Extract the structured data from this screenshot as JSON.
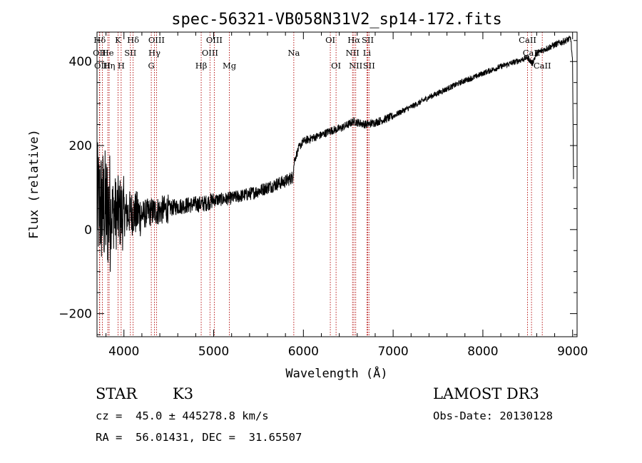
{
  "chart_data": {
    "type": "line",
    "title": "spec-56321-VB058N31V2_sp14-172.fits",
    "xlabel": "Wavelength (Å)",
    "ylabel": "Flux (relative)",
    "xlim": [
      3700,
      9050
    ],
    "ylim": [
      -255,
      470
    ],
    "xticks": [
      4000,
      5000,
      6000,
      7000,
      8000,
      9000
    ],
    "yticks": [
      -200,
      0,
      200,
      400
    ],
    "grid": false,
    "series": [
      {
        "name": "flux",
        "anchors": [
          [
            3700,
            60
          ],
          [
            3800,
            45
          ],
          [
            3900,
            40
          ],
          [
            4000,
            38
          ],
          [
            4100,
            40
          ],
          [
            4200,
            35
          ],
          [
            4300,
            42
          ],
          [
            4400,
            45
          ],
          [
            4500,
            50
          ],
          [
            4600,
            55
          ],
          [
            4700,
            58
          ],
          [
            4800,
            60
          ],
          [
            4900,
            62
          ],
          [
            5000,
            70
          ],
          [
            5100,
            72
          ],
          [
            5200,
            75
          ],
          [
            5300,
            80
          ],
          [
            5400,
            85
          ],
          [
            5500,
            92
          ],
          [
            5600,
            100
          ],
          [
            5700,
            108
          ],
          [
            5800,
            115
          ],
          [
            5880,
            125
          ],
          [
            5900,
            165
          ],
          [
            5950,
            195
          ],
          [
            6000,
            210
          ],
          [
            6100,
            218
          ],
          [
            6200,
            225
          ],
          [
            6300,
            235
          ],
          [
            6400,
            240
          ],
          [
            6500,
            250
          ],
          [
            6560,
            258
          ],
          [
            6600,
            255
          ],
          [
            6700,
            250
          ],
          [
            6800,
            255
          ],
          [
            6900,
            262
          ],
          [
            7000,
            270
          ],
          [
            7100,
            282
          ],
          [
            7200,
            292
          ],
          [
            7300,
            303
          ],
          [
            7400,
            315
          ],
          [
            7500,
            325
          ],
          [
            7600,
            335
          ],
          [
            7700,
            345
          ],
          [
            7800,
            355
          ],
          [
            7900,
            362
          ],
          [
            8000,
            372
          ],
          [
            8100,
            380
          ],
          [
            8200,
            388
          ],
          [
            8300,
            395
          ],
          [
            8400,
            402
          ],
          [
            8500,
            410
          ],
          [
            8550,
            395
          ],
          [
            8600,
            420
          ],
          [
            8700,
            430
          ],
          [
            8800,
            440
          ],
          [
            8900,
            448
          ],
          [
            8980,
            455
          ],
          [
            9000,
            395
          ],
          [
            9010,
            120
          ]
        ]
      }
    ],
    "lines": [
      {
        "label": "Hδ",
        "wave": 3730,
        "row": 0
      },
      {
        "label": "OII",
        "wave": 3727,
        "row": 1
      },
      {
        "label": "OIII",
        "wave": 3760,
        "row": 2
      },
      {
        "label": "He",
        "wave": 3820,
        "row": 1
      },
      {
        "label": "Hη",
        "wave": 3835,
        "row": 2
      },
      {
        "label": "K",
        "wave": 3934,
        "row": 0
      },
      {
        "label": "H",
        "wave": 3969,
        "row": 2
      },
      {
        "label": "SII",
        "wave": 4072,
        "row": 1
      },
      {
        "label": "Hδ",
        "wave": 4102,
        "row": 0
      },
      {
        "label": "Hγ",
        "wave": 4340,
        "row": 1
      },
      {
        "label": "G",
        "wave": 4305,
        "row": 2
      },
      {
        "label": "OIII",
        "wave": 4363,
        "row": 0
      },
      {
        "label": "Hβ",
        "wave": 4861,
        "row": 2
      },
      {
        "label": "OIII",
        "wave": 4959,
        "row": 1
      },
      {
        "label": "OIII",
        "wave": 5007,
        "row": 0
      },
      {
        "label": "Mg",
        "wave": 5175,
        "row": 2
      },
      {
        "label": "Na",
        "wave": 5893,
        "row": 1
      },
      {
        "label": "OI",
        "wave": 6300,
        "row": 0
      },
      {
        "label": "OI",
        "wave": 6364,
        "row": 2
      },
      {
        "label": "NII",
        "wave": 6548,
        "row": 1
      },
      {
        "label": "Hα",
        "wave": 6563,
        "row": 0
      },
      {
        "label": "NII",
        "wave": 6583,
        "row": 2
      },
      {
        "label": "Li",
        "wave": 6708,
        "row": 1
      },
      {
        "label": "SII",
        "wave": 6717,
        "row": 0
      },
      {
        "label": "SII",
        "wave": 6731,
        "row": 2
      },
      {
        "label": "CaII",
        "wave": 8498,
        "row": 0
      },
      {
        "label": "CaII",
        "wave": 8542,
        "row": 1
      },
      {
        "label": "CaII",
        "wave": 8662,
        "row": 2
      }
    ]
  },
  "info": {
    "object_class": "STAR",
    "subclass": "K3",
    "redshift": "cz =  45.0 ± 445278.8 km/s",
    "coords": "RA =  56.01431, DEC =  31.65507",
    "survey": "LAMOST DR3",
    "obs_date": "Obs-Date: 20130128"
  },
  "colors": {
    "line_marker": "#b00000",
    "spectrum": "#000000",
    "axes": "#000000"
  }
}
